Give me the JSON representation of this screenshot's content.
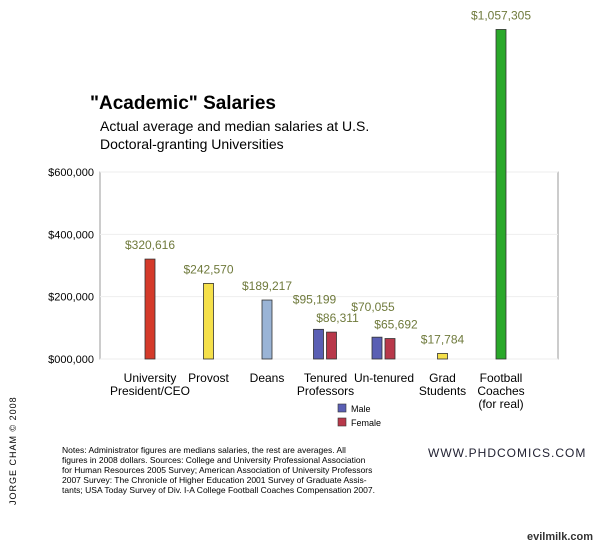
{
  "chart_data": {
    "type": "bar",
    "title": "\"Academic\" Salaries",
    "subtitle": [
      "Actual average and median salaries at U.S.",
      "Doctoral-granting Universities"
    ],
    "categories": [
      "University\nPresident/CEO",
      "Provost",
      "Deans",
      "Tenured\nProfessors",
      "Un-tenured",
      "Grad\nStudents",
      "Football\nCoaches\n(for real)"
    ],
    "values": [
      320616,
      242570,
      189217,
      null,
      null,
      17784,
      1057305
    ],
    "value_labels": [
      "$320,616",
      "$242,570",
      "$189,217",
      null,
      null,
      "$17,784",
      "$1,057,305"
    ],
    "colors": [
      "#d43a2a",
      "#f5e04a",
      "#9ab4d6",
      null,
      null,
      "#f5e04a",
      "#2aa82a"
    ],
    "series": [
      {
        "name": "Male",
        "color": "#5a5fb4",
        "values": [
          null,
          null,
          null,
          95199,
          70055,
          null,
          null
        ],
        "value_labels": [
          null,
          null,
          null,
          "$95,199",
          "$70,055",
          null,
          null
        ]
      },
      {
        "name": "Female",
        "color": "#b8384a",
        "values": [
          null,
          null,
          null,
          86311,
          65692,
          null,
          null
        ],
        "value_labels": [
          null,
          null,
          null,
          "$86,311",
          "$65,692",
          null,
          null
        ]
      }
    ],
    "ylim": [
      0,
      600000
    ],
    "yticks": [
      {
        "value": 0,
        "label": "$000,000"
      },
      {
        "value": 200000,
        "label": "$200,000"
      },
      {
        "value": 400000,
        "label": "$400,000"
      },
      {
        "value": 600000,
        "label": "$600,000"
      }
    ],
    "grid": true,
    "notes": [
      "Notes: Administrator figures are medians salaries, the rest are averages. All",
      "figures in 2008 dollars. Sources: College and University Professional Association",
      "for Human Resources 2005 Survey; American Association of University Professors",
      "2007 Survey: The Chronicle of Higher Education 2001 Survey of Graduate Assis-",
      "tants; USA Today Survey of Div. I-A College Football Coaches Compensation 2007."
    ],
    "credit": "JORGE CHAM © 2008",
    "website": "WWW.PHDCOMICS.COM",
    "watermark": "evilmilk.com"
  }
}
